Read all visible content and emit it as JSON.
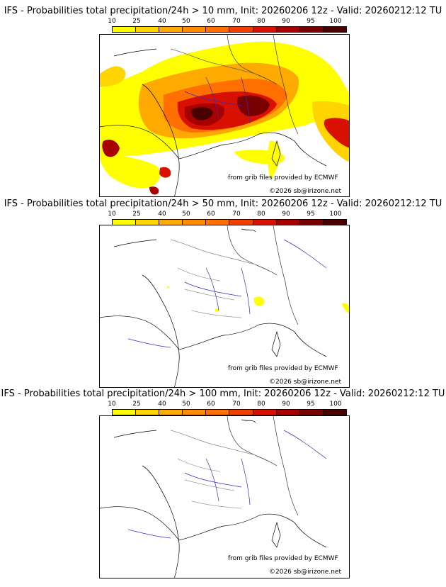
{
  "panels": [
    {
      "title": "IFS - Probabilities total precipitation/24h > 10 mm, Init: 20260206 12z - Valid: 20260212:12 TU",
      "threshold_mm": 10,
      "credit_source": "from grib files provided by ECMWF",
      "credit_copyright": "©2026 sb@irizone.net"
    },
    {
      "title": "IFS - Probabilities total precipitation/24h > 50 mm, Init: 20260206 12z - Valid: 20260212:12 TU",
      "threshold_mm": 50,
      "credit_source": "from grib files provided by ECMWF",
      "credit_copyright": "©2026 sb@irizone.net"
    },
    {
      "title": "IFS - Probabilities total precipitation/24h > 100 mm, Init: 20260206 12z - Valid: 20260212:12 TU",
      "threshold_mm": 100,
      "credit_source": "from grib files provided by ECMWF",
      "credit_copyright": "©2026 sb@irizone.net"
    }
  ],
  "legend": {
    "labels": [
      "10",
      "25",
      "40",
      "50",
      "60",
      "70",
      "80",
      "90",
      "95",
      "100"
    ],
    "colors": [
      "#ffff00",
      "#ffd400",
      "#ffaa00",
      "#ff8c00",
      "#ff7000",
      "#f04000",
      "#d81000",
      "#a80000",
      "#780000",
      "#480000"
    ]
  }
}
